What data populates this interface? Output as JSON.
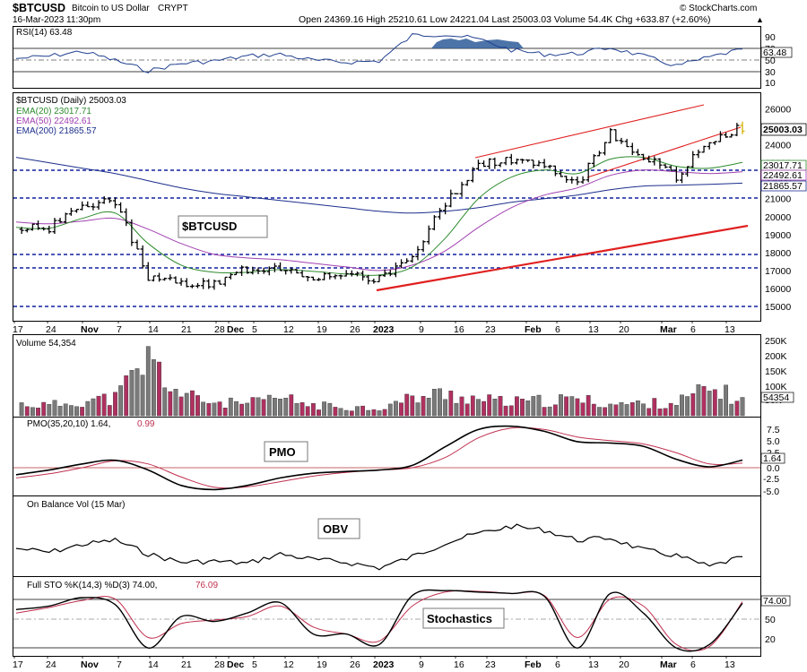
{
  "header": {
    "symbol": "$BTCUSD",
    "name": "Bitcoin to US Dollar",
    "type": "CRYPT",
    "datetime": "16-Mar-2023 11:30pm",
    "ohlc": "Open 24369.16  High 25210.61  Low 24221.04  Last 25003.03  Volume 54.4K  Chg +633.87 (+2.60%)",
    "chg_arrow": "▲",
    "watermark": "© StockCharts.com"
  },
  "colors": {
    "panel_border": "#000000",
    "rsi_fill": "#2e5c99",
    "ema20": "#2e8b2e",
    "ema50": "#a040b0",
    "ema200": "#1c2e8c",
    "trend_red": "#e02020",
    "support_blue": "#1020a0",
    "vol_up": "#7a7a7a",
    "vol_down": "#b03060",
    "pmo_line": "#000000",
    "pmo_signal": "#c03050",
    "zero_line": "#b03030",
    "last_price_tag": "#000000"
  },
  "rsi_panel": {
    "label": "RSI(14) 63.48",
    "value_tag": "63.48",
    "ticks": [
      "90",
      "70",
      "50",
      "30",
      "10"
    ]
  },
  "price_panel": {
    "label": "$BTCUSD (Daily) 25003.03",
    "ema20_label": "EMA(20) 23017.71",
    "ema50_label": "EMA(50) 22492.61",
    "ema200_label": "EMA(200) 21865.57",
    "callout": "$BTCUSD",
    "price_tag": "25003.03",
    "ema20_tag": "23017.71",
    "ema50_tag": "22492.61",
    "ema200_tag": "21865.57",
    "ticks": [
      "26000",
      "25000",
      "24000",
      "23000",
      "22000",
      "21000",
      "20000",
      "19000",
      "18000",
      "17000",
      "16000",
      "15000"
    ]
  },
  "x_axis": {
    "labels": [
      "17",
      "24",
      "Nov",
      "7",
      "14",
      "21",
      "28",
      "Dec",
      "5",
      "12",
      "19",
      "26",
      "2023",
      "9",
      "16",
      "23",
      "Feb",
      "6",
      "13",
      "20",
      "Mar",
      "6",
      "13"
    ]
  },
  "volume_panel": {
    "label": "Volume 54,354",
    "value_tag": "54354",
    "ticks": [
      "250K",
      "200K",
      "150K",
      "100K",
      "50K"
    ]
  },
  "pmo_panel": {
    "label_main": "PMO(35,20,10) 1.64,",
    "label_signal": "0.99",
    "callout": "PMO",
    "value_tag": "1.64",
    "ticks": [
      "7.5",
      "5.0",
      "2.5",
      "0.0",
      "-2.5",
      "-5.0"
    ]
  },
  "obv_panel": {
    "label": "On Balance Vol (15 Mar)",
    "callout": "OBV"
  },
  "sto_panel": {
    "label_main": "Full STO %K(14,3) %D(3) 74.00,",
    "label_signal": "76.09",
    "callout": "Stochastics",
    "value_tag": "74.00",
    "ticks": [
      "80",
      "50",
      "20"
    ]
  },
  "chart_data": [
    {
      "type": "line",
      "title": "RSI(14)",
      "ylim": [
        0,
        100
      ],
      "levels": [
        70,
        50,
        30
      ],
      "x": [
        "Oct 17",
        "Oct 24",
        "Nov 1",
        "Nov 7",
        "Nov 14",
        "Nov 21",
        "Nov 28",
        "Dec 5",
        "Dec 12",
        "Dec 19",
        "Dec 26",
        "Jan 2",
        "Jan 9",
        "Jan 16",
        "Jan 23",
        "Feb 1",
        "Feb 6",
        "Feb 13",
        "Feb 20",
        "Mar 1",
        "Mar 6",
        "Mar 13",
        "Mar 16"
      ],
      "series": [
        {
          "name": "RSI(14)",
          "values": [
            48,
            52,
            60,
            45,
            28,
            40,
            44,
            52,
            55,
            45,
            42,
            44,
            86,
            88,
            80,
            62,
            55,
            56,
            66,
            52,
            36,
            50,
            63.48
          ]
        }
      ]
    },
    {
      "type": "line",
      "title": "$BTCUSD (Daily)",
      "ylim": [
        15000,
        26500
      ],
      "x": [
        "Oct 17",
        "Oct 24",
        "Nov 1",
        "Nov 7",
        "Nov 14",
        "Nov 21",
        "Nov 28",
        "Dec 5",
        "Dec 12",
        "Dec 19",
        "Dec 26",
        "Jan 2",
        "Jan 9",
        "Jan 16",
        "Jan 23",
        "Feb 1",
        "Feb 6",
        "Feb 13",
        "Feb 20",
        "Mar 1",
        "Mar 6",
        "Mar 13",
        "Mar 16"
      ],
      "series": [
        {
          "name": "$BTCUSD",
          "values": [
            19300,
            19400,
            20600,
            20900,
            16500,
            16300,
            16200,
            17100,
            17200,
            16700,
            16600,
            16600,
            17800,
            20800,
            22900,
            23200,
            22800,
            21800,
            24600,
            23400,
            22200,
            24300,
            25003.03
          ]
        },
        {
          "name": "EMA(20)",
          "values": [
            19400,
            19350,
            19900,
            20200,
            18500,
            17300,
            16900,
            16900,
            17050,
            16950,
            16800,
            16750,
            17200,
            18800,
            21000,
            22200,
            22600,
            22400,
            23200,
            23300,
            22800,
            22700,
            23017.71
          ]
        },
        {
          "name": "EMA(50)",
          "values": [
            19700,
            19600,
            19750,
            19900,
            19300,
            18500,
            17900,
            17700,
            17600,
            17400,
            17200,
            17000,
            17300,
            18100,
            19400,
            20500,
            21200,
            21600,
            22300,
            22600,
            22500,
            22400,
            22492.61
          ]
        },
        {
          "name": "EMA(200)",
          "values": [
            23300,
            23000,
            22700,
            22400,
            22000,
            21600,
            21300,
            21100,
            20900,
            20700,
            20500,
            20300,
            20200,
            20300,
            20500,
            20800,
            21000,
            21200,
            21500,
            21700,
            21750,
            21800,
            21865.57
          ]
        }
      ],
      "horizontal_lines": [
        23000,
        21250,
        18250,
        17500,
        15400
      ],
      "trendlines": [
        {
          "from": [
            "Jan 1",
            16300
          ],
          "to": [
            "Mar 16",
            19700
          ]
        },
        {
          "from": [
            "Jan 20",
            23600
          ],
          "to": [
            "Mar 10",
            25900
          ]
        },
        {
          "from": [
            "Feb 12",
            21750
          ],
          "to": [
            "Mar 16",
            25250
          ]
        }
      ]
    },
    {
      "type": "bar",
      "title": "Volume",
      "ylim": [
        0,
        250000
      ],
      "x": [
        "Oct 17",
        "Oct 24",
        "Nov 1",
        "Nov 7",
        "Nov 14",
        "Nov 21",
        "Nov 28",
        "Dec 5",
        "Dec 12",
        "Dec 19",
        "Dec 26",
        "Jan 2",
        "Jan 9",
        "Jan 16",
        "Jan 23",
        "Feb 1",
        "Feb 6",
        "Feb 13",
        "Feb 20",
        "Mar 1",
        "Mar 6",
        "Mar 13",
        "Mar 16"
      ],
      "values": [
        40000,
        35000,
        50000,
        60000,
        190000,
        70000,
        45000,
        40000,
        60000,
        35000,
        30000,
        25000,
        60000,
        75000,
        55000,
        45000,
        50000,
        55000,
        40000,
        40000,
        45000,
        90000,
        54354
      ]
    },
    {
      "type": "line",
      "title": "PMO(35,20,10)",
      "ylim": [
        -5.5,
        9
      ],
      "x": [
        "Oct 17",
        "Oct 24",
        "Nov 1",
        "Nov 7",
        "Nov 14",
        "Nov 21",
        "Nov 28",
        "Dec 5",
        "Dec 12",
        "Dec 19",
        "Dec 26",
        "Jan 2",
        "Jan 9",
        "Jan 16",
        "Jan 23",
        "Feb 1",
        "Feb 6",
        "Feb 13",
        "Feb 20",
        "Mar 1",
        "Mar 6",
        "Mar 13",
        "Mar 16"
      ],
      "series": [
        {
          "name": "PMO",
          "values": [
            -1.5,
            -0.5,
            0.8,
            1.6,
            -0.5,
            -3.8,
            -4.7,
            -3.8,
            -2.2,
            -1.2,
            -0.8,
            -0.5,
            0.5,
            4.5,
            8.2,
            8.9,
            7.8,
            5.6,
            5.3,
            4.6,
            1.8,
            0.2,
            1.64
          ]
        },
        {
          "name": "Signal",
          "values": [
            -2.2,
            -1.3,
            0.0,
            1.5,
            0.8,
            -2.0,
            -4.2,
            -4.1,
            -3.0,
            -1.8,
            -1.0,
            -0.5,
            0.0,
            2.2,
            6.4,
            8.5,
            8.2,
            6.6,
            5.8,
            5.1,
            3.2,
            0.8,
            0.99
          ]
        }
      ]
    },
    {
      "type": "line",
      "title": "On Balance Vol",
      "x": [
        "Oct 17",
        "Oct 24",
        "Nov 1",
        "Nov 7",
        "Nov 14",
        "Nov 21",
        "Nov 28",
        "Dec 5",
        "Dec 12",
        "Dec 19",
        "Dec 26",
        "Jan 2",
        "Jan 9",
        "Jan 16",
        "Jan 23",
        "Feb 1",
        "Feb 6",
        "Feb 13",
        "Feb 20",
        "Mar 1",
        "Mar 6",
        "Mar 13",
        "Mar 16"
      ],
      "series": [
        {
          "name": "OBV",
          "values": [
            45,
            38,
            52,
            60,
            35,
            20,
            22,
            18,
            35,
            25,
            20,
            10,
            30,
            55,
            72,
            85,
            78,
            60,
            64,
            42,
            32,
            12,
            30
          ]
        }
      ]
    },
    {
      "type": "line",
      "title": "Full STO %K(14,3) %D(3)",
      "ylim": [
        0,
        100
      ],
      "levels": [
        80,
        50,
        20
      ],
      "x": [
        "Oct 17",
        "Oct 24",
        "Nov 1",
        "Nov 7",
        "Nov 14",
        "Nov 21",
        "Nov 28",
        "Dec 5",
        "Dec 12",
        "Dec 19",
        "Dec 26",
        "Jan 2",
        "Jan 9",
        "Jan 16",
        "Jan 23",
        "Feb 1",
        "Feb 6",
        "Feb 13",
        "Feb 20",
        "Mar 1",
        "Mar 6",
        "Mar 13",
        "Mar 16"
      ],
      "series": [
        {
          "name": "%K",
          "values": [
            65,
            70,
            82,
            72,
            10,
            55,
            48,
            60,
            75,
            30,
            30,
            15,
            85,
            92,
            90,
            88,
            84,
            10,
            88,
            60,
            10,
            15,
            74.0
          ]
        },
        {
          "name": "%D",
          "values": [
            60,
            68,
            78,
            80,
            25,
            45,
            50,
            55,
            70,
            40,
            30,
            20,
            70,
            90,
            91,
            88,
            85,
            25,
            80,
            70,
            15,
            12,
            76.09
          ]
        }
      ]
    }
  ]
}
